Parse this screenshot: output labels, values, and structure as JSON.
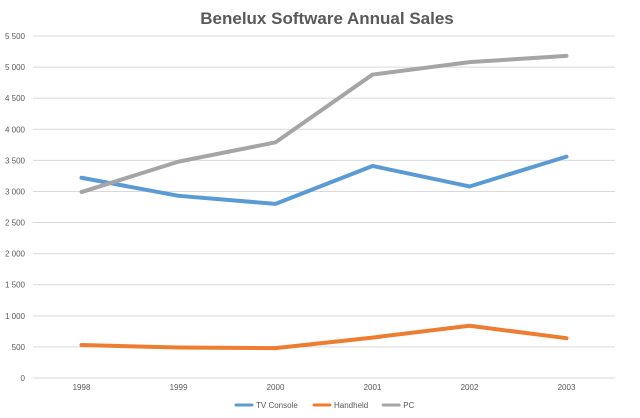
{
  "chart_data": {
    "type": "line",
    "title": "Benelux Software Annual Sales",
    "categories": [
      "1998",
      "1999",
      "2000",
      "2001",
      "2002",
      "2003"
    ],
    "series": [
      {
        "name": "TV Console",
        "color": "#5b9bd5",
        "values": [
          3220,
          2930,
          2800,
          3410,
          3080,
          3560
        ]
      },
      {
        "name": "Handheld",
        "color": "#ed7d31",
        "values": [
          530,
          490,
          480,
          650,
          840,
          640
        ]
      },
      {
        "name": "PC",
        "color": "#a5a5a5",
        "values": [
          2990,
          3480,
          3790,
          4880,
          5080,
          5180
        ]
      }
    ],
    "ylim": [
      0,
      5500
    ],
    "ytick_step": 500,
    "y_tick_labels": [
      "0",
      "500",
      "1 000",
      "1 500",
      "2 000",
      "2 500",
      "3 000",
      "3 500",
      "4 000",
      "4 500",
      "5 000",
      "5 500"
    ],
    "grid": true,
    "legend_position": "bottom"
  }
}
